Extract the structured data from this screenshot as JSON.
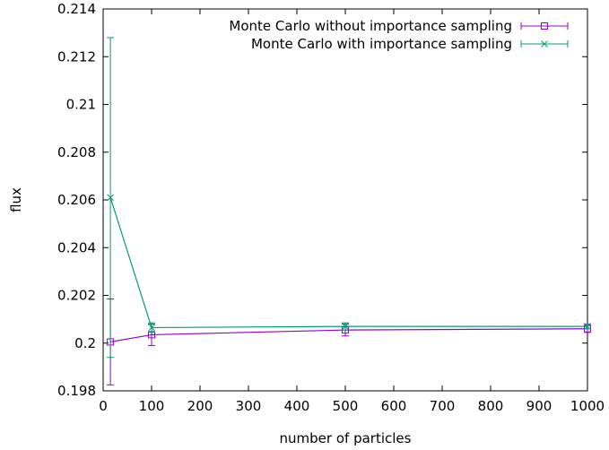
{
  "chart_data": {
    "type": "line",
    "title": "",
    "xlabel": "number of particles",
    "ylabel": "flux",
    "xlim": [
      0,
      1000
    ],
    "ylim": [
      0.198,
      0.214
    ],
    "xticks": [
      "0",
      "100",
      "200",
      "300",
      "400",
      "500",
      "600",
      "700",
      "800",
      "900",
      "1000"
    ],
    "yticks": [
      "0.198",
      "0.2",
      "0.202",
      "0.204",
      "0.206",
      "0.208",
      "0.21",
      "0.212",
      "0.214"
    ],
    "xtick_values": [
      0,
      100,
      200,
      300,
      400,
      500,
      600,
      700,
      800,
      900,
      1000
    ],
    "ytick_values": [
      0.198,
      0.2,
      0.202,
      0.204,
      0.206,
      0.208,
      0.21,
      0.212,
      0.214
    ],
    "grid": false,
    "legend_position": "top-right",
    "series": [
      {
        "name": "Monte Carlo without importance sampling",
        "color": "#9400d3",
        "marker": "open-square",
        "x": [
          15,
          100,
          500,
          1000
        ],
        "y": [
          0.20005,
          0.20035,
          0.20055,
          0.2006
        ],
        "err": [
          0.0018,
          0.00045,
          0.00025,
          0.00015
        ]
      },
      {
        "name": "Monte Carlo with importance sampling",
        "color": "#009e73",
        "marker": "x",
        "x": [
          15,
          100,
          500,
          1000
        ],
        "y": [
          0.2061,
          0.20065,
          0.2007,
          0.2007
        ],
        "err": [
          0.0067,
          0.0002,
          0.00015,
          0.0001
        ]
      }
    ]
  }
}
